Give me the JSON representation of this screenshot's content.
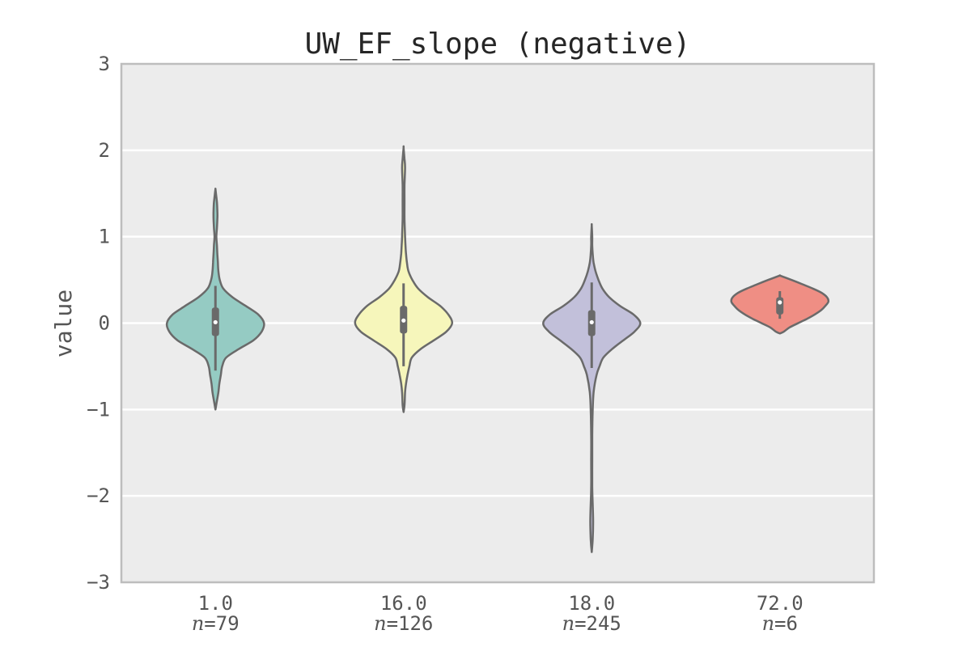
{
  "chart_data": {
    "type": "violin",
    "title": "UW_EF_slope (negative)",
    "xlabel": "",
    "ylabel": "value",
    "ylim": [
      -3,
      3
    ],
    "yticks": [
      -3,
      -2,
      -1,
      0,
      1,
      2,
      3
    ],
    "ytick_labels": [
      "−3",
      "−2",
      "−1",
      "0",
      "1",
      "2",
      "3"
    ],
    "grid": true,
    "categories": [
      "1.0",
      "16.0",
      "18.0",
      "72.0"
    ],
    "n_prefix": "n",
    "n_labels": [
      "=79",
      "=126",
      "=245",
      "=6"
    ],
    "series": [
      {
        "category": "1.0",
        "n": 79,
        "color": "#95cbc3",
        "median": 0.01,
        "q1": -0.15,
        "q3": 0.18,
        "whisker_low": -0.55,
        "whisker_high": 0.43,
        "profile": [
          [
            -1.0,
            0.0
          ],
          [
            -0.9,
            0.03
          ],
          [
            -0.8,
            0.06
          ],
          [
            -0.7,
            0.08
          ],
          [
            -0.6,
            0.11
          ],
          [
            -0.5,
            0.14
          ],
          [
            -0.4,
            0.22
          ],
          [
            -0.3,
            0.48
          ],
          [
            -0.2,
            0.78
          ],
          [
            -0.1,
            0.95
          ],
          [
            0.0,
            1.0
          ],
          [
            0.1,
            0.88
          ],
          [
            0.2,
            0.62
          ],
          [
            0.3,
            0.35
          ],
          [
            0.4,
            0.16
          ],
          [
            0.5,
            0.09
          ],
          [
            0.6,
            0.06
          ],
          [
            0.7,
            0.05
          ],
          [
            0.8,
            0.04
          ],
          [
            0.9,
            0.03
          ],
          [
            1.0,
            0.02
          ],
          [
            1.1,
            0.03
          ],
          [
            1.2,
            0.04
          ],
          [
            1.3,
            0.04
          ],
          [
            1.4,
            0.03
          ],
          [
            1.5,
            0.01
          ],
          [
            1.55,
            0.0
          ]
        ]
      },
      {
        "category": "16.0",
        "n": 126,
        "color": "#f6f6bb",
        "median": 0.03,
        "q1": -0.12,
        "q3": 0.2,
        "whisker_low": -0.5,
        "whisker_high": 0.46,
        "profile": [
          [
            -1.03,
            0.0
          ],
          [
            -0.95,
            0.02
          ],
          [
            -0.8,
            0.03
          ],
          [
            -0.7,
            0.05
          ],
          [
            -0.6,
            0.08
          ],
          [
            -0.5,
            0.12
          ],
          [
            -0.4,
            0.17
          ],
          [
            -0.3,
            0.35
          ],
          [
            -0.2,
            0.62
          ],
          [
            -0.1,
            0.88
          ],
          [
            0.0,
            1.0
          ],
          [
            0.1,
            0.92
          ],
          [
            0.2,
            0.75
          ],
          [
            0.3,
            0.5
          ],
          [
            0.4,
            0.3
          ],
          [
            0.5,
            0.18
          ],
          [
            0.6,
            0.1
          ],
          [
            0.7,
            0.07
          ],
          [
            0.8,
            0.05
          ],
          [
            0.9,
            0.04
          ],
          [
            1.0,
            0.03
          ],
          [
            1.2,
            0.02
          ],
          [
            1.4,
            0.02
          ],
          [
            1.6,
            0.02
          ],
          [
            1.8,
            0.03
          ],
          [
            1.9,
            0.02
          ],
          [
            2.03,
            0.0
          ]
        ]
      },
      {
        "category": "18.0",
        "n": 245,
        "color": "#c2c0da",
        "median": 0.01,
        "q1": -0.15,
        "q3": 0.15,
        "whisker_low": -0.52,
        "whisker_high": 0.47,
        "profile": [
          [
            -2.65,
            0.0
          ],
          [
            -2.5,
            0.02
          ],
          [
            -2.3,
            0.03
          ],
          [
            -2.1,
            0.02
          ],
          [
            -1.9,
            0.01
          ],
          [
            -1.6,
            0.01
          ],
          [
            -1.3,
            0.01
          ],
          [
            -1.0,
            0.02
          ],
          [
            -0.8,
            0.04
          ],
          [
            -0.6,
            0.1
          ],
          [
            -0.5,
            0.16
          ],
          [
            -0.4,
            0.24
          ],
          [
            -0.3,
            0.42
          ],
          [
            -0.2,
            0.65
          ],
          [
            -0.1,
            0.88
          ],
          [
            0.0,
            1.0
          ],
          [
            0.1,
            0.86
          ],
          [
            0.2,
            0.58
          ],
          [
            0.3,
            0.36
          ],
          [
            0.4,
            0.22
          ],
          [
            0.5,
            0.14
          ],
          [
            0.6,
            0.08
          ],
          [
            0.7,
            0.04
          ],
          [
            0.8,
            0.02
          ],
          [
            0.9,
            0.01
          ],
          [
            1.0,
            0.01
          ],
          [
            1.13,
            0.0
          ]
        ]
      },
      {
        "category": "72.0",
        "n": 6,
        "color": "#ef8e84",
        "median": 0.24,
        "q1": 0.1,
        "q3": 0.3,
        "whisker_low": 0.05,
        "whisker_high": 0.37,
        "profile": [
          [
            -0.12,
            0.0
          ],
          [
            -0.1,
            0.08
          ],
          [
            -0.05,
            0.2
          ],
          [
            0.0,
            0.38
          ],
          [
            0.05,
            0.56
          ],
          [
            0.1,
            0.72
          ],
          [
            0.15,
            0.85
          ],
          [
            0.2,
            0.94
          ],
          [
            0.25,
            1.0
          ],
          [
            0.3,
            0.97
          ],
          [
            0.35,
            0.86
          ],
          [
            0.4,
            0.68
          ],
          [
            0.45,
            0.46
          ],
          [
            0.5,
            0.24
          ],
          [
            0.53,
            0.1
          ],
          [
            0.55,
            0.0
          ]
        ]
      }
    ]
  }
}
